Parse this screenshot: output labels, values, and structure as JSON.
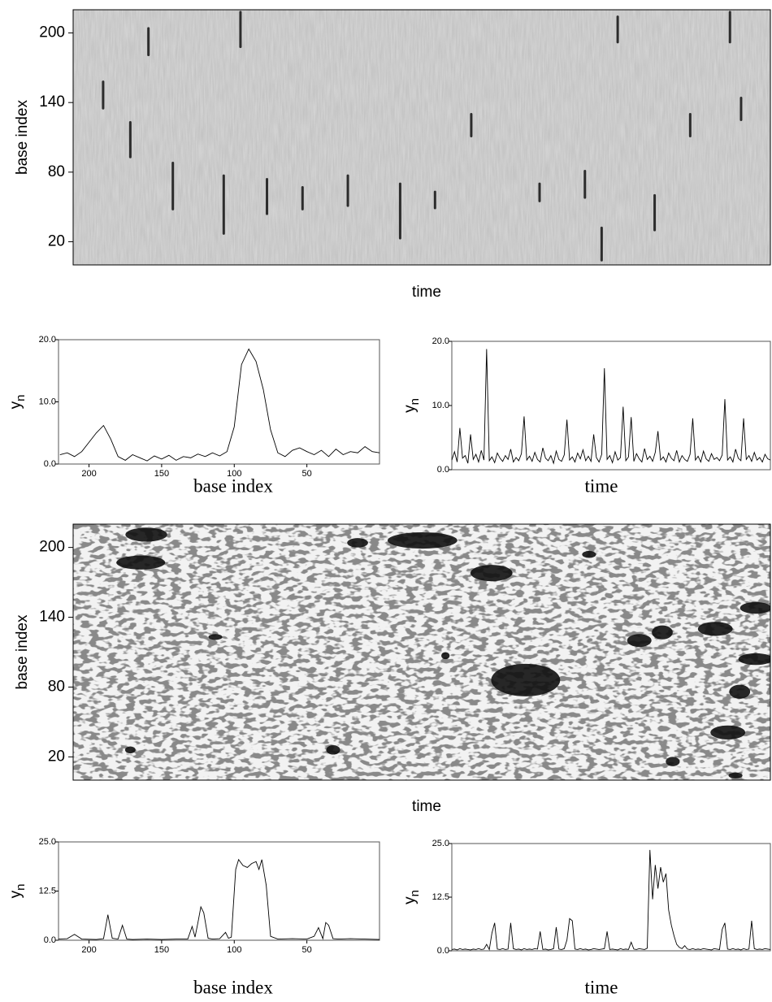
{
  "chart_data": [
    {
      "type": "heatmap",
      "xlabel": "time",
      "ylabel": "base index",
      "ylim": [
        0,
        220
      ],
      "yticks": [
        20,
        80,
        140,
        200
      ],
      "xlim": [
        0,
        1
      ],
      "streaks": {
        "x": [
          0.082,
          0.108,
          0.043,
          0.216,
          0.24,
          0.394,
          0.469,
          0.519,
          0.758,
          0.834,
          0.885,
          0.942,
          0.278,
          0.669,
          0.734,
          0.329,
          0.143,
          0.571,
          0.781,
          0.958
        ],
        "y_low": [
          92,
          180,
          134,
          26,
          187,
          50,
          22,
          48,
          3,
          29,
          110,
          191,
          43,
          54,
          57,
          47,
          47,
          110,
          191,
          124
        ],
        "y_high": [
          124,
          205,
          159,
          78,
          219,
          78,
          71,
          64,
          33,
          61,
          131,
          219,
          75,
          71,
          82,
          68,
          89,
          131,
          215,
          145
        ]
      }
    },
    {
      "type": "line",
      "xlabel": "base index",
      "ylabel": "y",
      "ylabel_subscript": "n",
      "xlim": [
        221,
        0
      ],
      "xticks": [
        200,
        150,
        100,
        50
      ],
      "ylim": [
        0,
        20
      ],
      "yticks": [
        {
          "value": 0,
          "label": "0.0"
        },
        {
          "value": 10,
          "label": "10.0"
        },
        {
          "value": 20,
          "label": "20.0"
        }
      ],
      "color": "#000000",
      "x": [
        220,
        215,
        210,
        205,
        200,
        195,
        190,
        185,
        180,
        175,
        170,
        165,
        160,
        155,
        150,
        145,
        140,
        135,
        130,
        125,
        120,
        115,
        110,
        105,
        100,
        95,
        90,
        85,
        80,
        75,
        70,
        65,
        60,
        55,
        50,
        45,
        40,
        35,
        30,
        25,
        20,
        15,
        10,
        5,
        0
      ],
      "values": [
        1.5,
        1.8,
        1.2,
        2.0,
        3.5,
        5.0,
        6.2,
        4.0,
        1.2,
        0.6,
        1.5,
        1.0,
        0.5,
        1.3,
        0.8,
        1.4,
        0.6,
        1.2,
        1.0,
        1.6,
        1.2,
        1.8,
        1.3,
        2.0,
        6.0,
        16.0,
        18.5,
        16.5,
        12.0,
        5.5,
        1.8,
        1.2,
        2.2,
        2.6,
        2.0,
        1.5,
        2.2,
        1.2,
        2.4,
        1.5,
        2.0,
        1.8,
        2.8,
        2.0,
        1.8
      ]
    },
    {
      "type": "line",
      "xlabel": "time",
      "ylabel": "y",
      "ylabel_subscript": "n",
      "ylim": [
        0,
        20
      ],
      "yticks": [
        {
          "value": 0,
          "label": "0.0"
        },
        {
          "value": 10,
          "label": "10.0"
        },
        {
          "value": 20,
          "label": "20.0"
        }
      ],
      "color": "#000000",
      "values": [
        1.5,
        2.8,
        1.2,
        6.5,
        1.8,
        2.2,
        1.0,
        5.5,
        1.6,
        2.4,
        1.2,
        3.0,
        1.5,
        18.8,
        1.4,
        2.0,
        1.1,
        2.6,
        1.8,
        1.3,
        2.2,
        1.6,
        3.2,
        1.2,
        1.9,
        1.4,
        2.5,
        8.3,
        1.5,
        2.1,
        1.3,
        2.7,
        1.6,
        1.2,
        3.4,
        1.8,
        1.4,
        2.2,
        1.0,
        2.9,
        1.6,
        1.3,
        2.3,
        7.8,
        1.5,
        2.0,
        1.2,
        2.6,
        1.7,
        3.1,
        1.4,
        2.1,
        1.3,
        5.5,
        1.9,
        1.2,
        2.4,
        15.8,
        1.6,
        2.2,
        1.1,
        2.8,
        1.5,
        1.9,
        9.8,
        1.4,
        2.0,
        8.2,
        1.3,
        2.5,
        1.7,
        1.2,
        3.3,
        1.6,
        2.1,
        1.3,
        2.7,
        6.0,
        1.5,
        2.0,
        1.2,
        2.6,
        1.8,
        1.4,
        3.0,
        1.2,
        2.2,
        1.6,
        1.3,
        2.4,
        8.0,
        1.5,
        2.1,
        1.2,
        2.9,
        1.7,
        1.3,
        2.5,
        1.6,
        1.9,
        1.4,
        2.3,
        11.0,
        1.5,
        2.0,
        1.2,
        3.2,
        1.8,
        1.4,
        8.0,
        1.6,
        2.2,
        1.3,
        2.7,
        1.5,
        1.9,
        1.2,
        2.4,
        1.7,
        1.5
      ]
    },
    {
      "type": "heatmap",
      "xlabel": "time",
      "ylabel": "base index",
      "ylim": [
        0,
        220
      ],
      "yticks": [
        20,
        80,
        140,
        200
      ],
      "xlim": [
        0,
        1
      ],
      "blobs": {
        "x": [
          0.649,
          0.105,
          0.097,
          0.501,
          0.6,
          0.921,
          0.845,
          0.812,
          0.979,
          0.956,
          0.939,
          0.979,
          0.373,
          0.082,
          0.408,
          0.534,
          0.74,
          0.204,
          0.86,
          0.95
        ],
        "y": [
          86,
          211,
          187,
          206,
          178,
          130,
          127,
          120,
          148,
          76,
          41,
          104,
          26,
          26,
          204,
          107,
          194,
          123,
          16,
          4
        ],
        "width": [
          0.099,
          0.06,
          0.07,
          0.1,
          0.06,
          0.05,
          0.03,
          0.035,
          0.045,
          0.03,
          0.05,
          0.05,
          0.02,
          0.015,
          0.03,
          0.012,
          0.02,
          0.02,
          0.02,
          0.02
        ],
        "height": [
          28,
          12,
          12,
          14,
          14,
          12,
          12,
          11,
          10,
          12,
          12,
          10,
          8,
          6,
          8,
          6,
          6,
          5,
          8,
          5
        ]
      }
    },
    {
      "type": "line",
      "xlabel": "base index",
      "ylabel": "y",
      "ylabel_subscript": "n",
      "xlim": [
        221,
        0
      ],
      "xticks": [
        200,
        150,
        100,
        50
      ],
      "ylim": [
        0,
        25
      ],
      "yticks": [
        {
          "value": 0,
          "label": "0.0"
        },
        {
          "value": 12.5,
          "label": "12.5"
        },
        {
          "value": 25,
          "label": "25.0"
        }
      ],
      "color": "#000000",
      "x": [
        221,
        215,
        210,
        205,
        195,
        190,
        187,
        184,
        180,
        177,
        174,
        170,
        160,
        150,
        140,
        132,
        129,
        127,
        125,
        123,
        121,
        118,
        115,
        110,
        106,
        104,
        102,
        99,
        97,
        94,
        91,
        88,
        85,
        83,
        81,
        78,
        75,
        70,
        60,
        50,
        45,
        42,
        39,
        37,
        35,
        32,
        28,
        20,
        10,
        0
      ],
      "values": [
        0.3,
        0.4,
        1.5,
        0.3,
        0.2,
        0.4,
        6.5,
        0.5,
        0.3,
        3.8,
        0.3,
        0.2,
        0.3,
        0.2,
        0.3,
        0.3,
        3.5,
        0.8,
        4.5,
        8.5,
        7.0,
        0.5,
        0.3,
        0.4,
        2.0,
        0.5,
        0.8,
        18.0,
        20.5,
        19.0,
        18.5,
        19.5,
        20.0,
        18.0,
        20.5,
        14.0,
        1.0,
        0.3,
        0.4,
        0.3,
        1.0,
        3.2,
        0.4,
        4.5,
        3.8,
        0.4,
        0.3,
        0.4,
        0.3,
        0.2
      ]
    },
    {
      "type": "line",
      "xlabel": "time",
      "ylabel": "y",
      "ylabel_subscript": "n",
      "ylim": [
        0,
        25
      ],
      "yticks": [
        {
          "value": 0,
          "label": "0.0"
        },
        {
          "value": 12.5,
          "label": "12.5"
        },
        {
          "value": 25,
          "label": "25.0"
        }
      ],
      "color": "#000000",
      "values": [
        0.3,
        0.4,
        0.2,
        0.5,
        0.3,
        0.4,
        0.3,
        0.2,
        0.4,
        0.3,
        0.5,
        0.3,
        0.4,
        1.5,
        0.3,
        4.2,
        6.5,
        0.4,
        0.3,
        0.5,
        0.3,
        0.4,
        6.5,
        0.5,
        0.3,
        0.4,
        0.2,
        0.5,
        0.3,
        0.4,
        0.3,
        0.5,
        0.4,
        4.5,
        0.3,
        0.4,
        0.2,
        0.3,
        0.5,
        5.5,
        0.4,
        0.3,
        0.5,
        2.5,
        7.5,
        7.0,
        0.4,
        0.3,
        0.5,
        0.3,
        0.4,
        0.2,
        0.3,
        0.5,
        0.4,
        0.3,
        0.4,
        0.5,
        4.5,
        0.3,
        0.4,
        0.3,
        0.2,
        0.5,
        0.3,
        0.4,
        0.3,
        2.0,
        0.4,
        0.3,
        0.5,
        0.4,
        0.3,
        0.6,
        23.5,
        12.0,
        20.0,
        14.5,
        19.5,
        16.0,
        18.0,
        9.5,
        6.0,
        3.5,
        1.5,
        0.8,
        0.5,
        1.2,
        0.4,
        0.3,
        0.5,
        0.3,
        0.4,
        0.3,
        0.5,
        0.4,
        0.3,
        0.2,
        0.5,
        0.4,
        0.3,
        5.0,
        6.5,
        0.4,
        0.3,
        0.5,
        0.3,
        0.4,
        0.2,
        0.5,
        0.3,
        0.4,
        7.0,
        0.5,
        0.3,
        0.4,
        0.3,
        0.5,
        0.4,
        0.3
      ]
    }
  ]
}
